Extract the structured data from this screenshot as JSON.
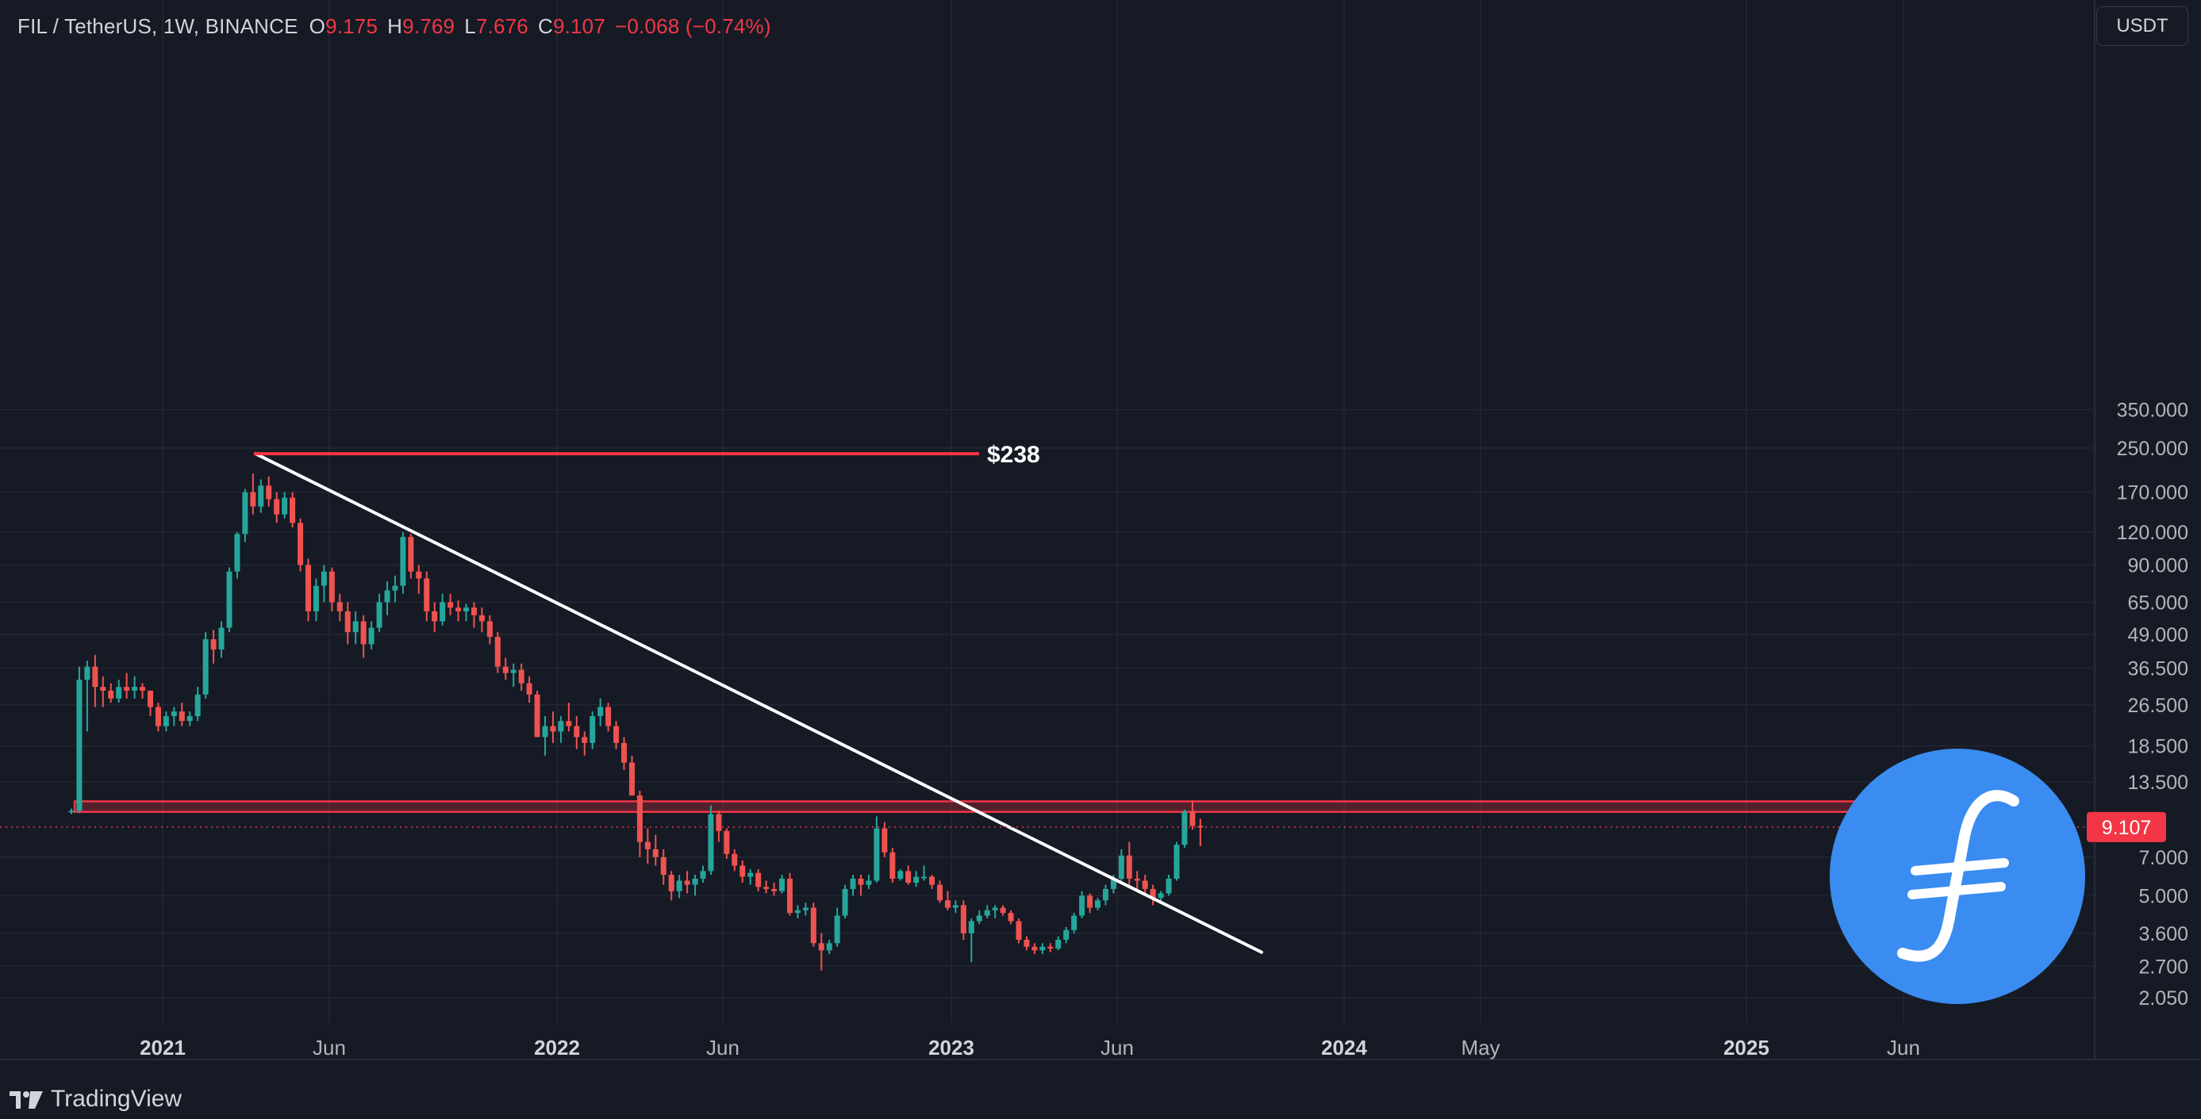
{
  "header": {
    "symbol": "FIL / TetherUS, 1W, BINANCE",
    "open_label": "O",
    "open": "9.175",
    "high_label": "H",
    "high": "9.769",
    "low_label": "L",
    "low": "7.676",
    "close_label": "C",
    "close": "9.107",
    "change": "−0.068 (−0.74%)"
  },
  "unit_button": "USDT",
  "brand": "TradingView",
  "logo": "filecoin-logo",
  "colors": {
    "background": "#161a25",
    "up": "#26a69a",
    "down": "#ef5350",
    "accent_red": "#f23645",
    "trendline": "#ffffff",
    "logo_blue": "#3a8cf0"
  },
  "chart_data": {
    "type": "candlestick",
    "scale": "log",
    "interval": "1W",
    "last_price": "9.107",
    "y_ticks": [
      "350.000",
      "250.000",
      "170.000",
      "120.000",
      "90.000",
      "65.000",
      "49.000",
      "36.500",
      "26.500",
      "18.500",
      "13.500",
      "7.000",
      "5.000",
      "3.600",
      "2.700",
      "2.050"
    ],
    "x_ticks": [
      "2021",
      "Jun",
      "2022",
      "Jun",
      "2023",
      "Jun",
      "2024",
      "May",
      "2025",
      "Jun"
    ],
    "annotations": {
      "ath_label": "$238",
      "ath_value": 238,
      "resistance_zone": [
        10.4,
        11.4
      ],
      "trendline": {
        "from": {
          "date": "2021-04-01",
          "price": 238
        },
        "to": {
          "date": "2023-10-23",
          "price": 3.2
        }
      }
    },
    "candles": [
      [
        10.4,
        10.7,
        10.2,
        10.5
      ],
      [
        10.5,
        37,
        10.3,
        33
      ],
      [
        33,
        39,
        21,
        37
      ],
      [
        37,
        41,
        26,
        31
      ],
      [
        31,
        34,
        26,
        30
      ],
      [
        30,
        32,
        27,
        28
      ],
      [
        28,
        33,
        27,
        31
      ],
      [
        31,
        35,
        28,
        30
      ],
      [
        30,
        34,
        28,
        31
      ],
      [
        31,
        32,
        28,
        30
      ],
      [
        30,
        30,
        24,
        26
      ],
      [
        26,
        27,
        21,
        22
      ],
      [
        22,
        25,
        21,
        24
      ],
      [
        24,
        26,
        22,
        25
      ],
      [
        25,
        27,
        22,
        23
      ],
      [
        23,
        25,
        22,
        24
      ],
      [
        24,
        31,
        23,
        29
      ],
      [
        29,
        50,
        28,
        47
      ],
      [
        47,
        51,
        38,
        43
      ],
      [
        43,
        55,
        40,
        52
      ],
      [
        52,
        88,
        50,
        85
      ],
      [
        85,
        120,
        80,
        118
      ],
      [
        118,
        175,
        110,
        170
      ],
      [
        170,
        200,
        140,
        150
      ],
      [
        150,
        190,
        142,
        180
      ],
      [
        180,
        195,
        150,
        160
      ],
      [
        160,
        170,
        130,
        140
      ],
      [
        140,
        170,
        135,
        162
      ],
      [
        162,
        170,
        125,
        130
      ],
      [
        130,
        135,
        85,
        90
      ],
      [
        90,
        95,
        55,
        60
      ],
      [
        60,
        80,
        55,
        75
      ],
      [
        75,
        90,
        65,
        85
      ],
      [
        85,
        88,
        60,
        65
      ],
      [
        65,
        70,
        55,
        60
      ],
      [
        60,
        65,
        45,
        50
      ],
      [
        50,
        60,
        45,
        55
      ],
      [
        55,
        58,
        40,
        45
      ],
      [
        45,
        55,
        43,
        52
      ],
      [
        52,
        70,
        50,
        65
      ],
      [
        65,
        78,
        58,
        72
      ],
      [
        72,
        82,
        65,
        75
      ],
      [
        75,
        120,
        70,
        115
      ],
      [
        115,
        118,
        80,
        85
      ],
      [
        85,
        90,
        70,
        80
      ],
      [
        80,
        85,
        55,
        60
      ],
      [
        60,
        65,
        50,
        55
      ],
      [
        55,
        70,
        53,
        65
      ],
      [
        65,
        70,
        58,
        62
      ],
      [
        62,
        66,
        55,
        60
      ],
      [
        60,
        64,
        55,
        62
      ],
      [
        62,
        65,
        52,
        58
      ],
      [
        58,
        62,
        50,
        55
      ],
      [
        55,
        58,
        45,
        48
      ],
      [
        48,
        50,
        35,
        37
      ],
      [
        37,
        40,
        33,
        35
      ],
      [
        35,
        38,
        31,
        36
      ],
      [
        36,
        38,
        30,
        32
      ],
      [
        32,
        34,
        27,
        29
      ],
      [
        29,
        30,
        20,
        20
      ],
      [
        20,
        24,
        17,
        22
      ],
      [
        22,
        25,
        19,
        21
      ],
      [
        21,
        24,
        19,
        23
      ],
      [
        23,
        27,
        21,
        22
      ],
      [
        22,
        24,
        18,
        20
      ],
      [
        20,
        21,
        17,
        19
      ],
      [
        19,
        25,
        18,
        24
      ],
      [
        24,
        28,
        22,
        26
      ],
      [
        26,
        27,
        21,
        22
      ],
      [
        22,
        23,
        18,
        19
      ],
      [
        19,
        20,
        15,
        16
      ],
      [
        16,
        17,
        12,
        12
      ],
      [
        12,
        12.5,
        7,
        8
      ],
      [
        8,
        9,
        6.6,
        7.5
      ],
      [
        7.5,
        8.5,
        6.5,
        7
      ],
      [
        7,
        7.5,
        5.5,
        6
      ],
      [
        6,
        6.2,
        4.8,
        5.2
      ],
      [
        5.2,
        6,
        4.9,
        5.7
      ],
      [
        5.7,
        6.2,
        5.1,
        5.5
      ],
      [
        5.5,
        6,
        5,
        5.8
      ],
      [
        5.8,
        6.5,
        5.6,
        6.2
      ],
      [
        6.2,
        11,
        6,
        10.2
      ],
      [
        10.2,
        10.5,
        8,
        8.8
      ],
      [
        8.8,
        9,
        6.9,
        7.2
      ],
      [
        7.2,
        7.5,
        6.2,
        6.5
      ],
      [
        6.5,
        6.8,
        5.6,
        5.9
      ],
      [
        5.9,
        6.3,
        5.5,
        6.1
      ],
      [
        6.1,
        6.3,
        5.2,
        5.4
      ],
      [
        5.4,
        5.7,
        5.1,
        5.3
      ],
      [
        5.3,
        5.6,
        5,
        5.2
      ],
      [
        5.2,
        6,
        5.1,
        5.8
      ],
      [
        5.8,
        6.1,
        4.2,
        4.3
      ],
      [
        4.3,
        4.6,
        4.1,
        4.4
      ],
      [
        4.4,
        4.7,
        4.2,
        4.5
      ],
      [
        4.5,
        4.7,
        3.2,
        3.3
      ],
      [
        3.3,
        3.6,
        2.6,
        3.1
      ],
      [
        3.1,
        3.4,
        3,
        3.3
      ],
      [
        3.3,
        4.5,
        3.2,
        4.2
      ],
      [
        4.2,
        5.5,
        4.1,
        5.3
      ],
      [
        5.3,
        6,
        5,
        5.8
      ],
      [
        5.8,
        6,
        5,
        5.5
      ],
      [
        5.5,
        6,
        5.3,
        5.7
      ],
      [
        5.7,
        10,
        5.6,
        9
      ],
      [
        9,
        9.5,
        7,
        7.3
      ],
      [
        7.3,
        7.6,
        5.6,
        5.8
      ],
      [
        5.8,
        6.3,
        5.7,
        6.2
      ],
      [
        6.2,
        6.5,
        5.5,
        5.6
      ],
      [
        5.6,
        6.2,
        5.4,
        5.9
      ],
      [
        5.9,
        6.5,
        5.7,
        5.9
      ],
      [
        5.9,
        6,
        5.3,
        5.5
      ],
      [
        5.5,
        5.7,
        4.7,
        4.8
      ],
      [
        4.8,
        5.2,
        4.4,
        4.5
      ],
      [
        4.5,
        4.8,
        4.3,
        4.6
      ],
      [
        4.6,
        4.8,
        3.4,
        3.6
      ],
      [
        3.6,
        4.1,
        2.8,
        4
      ],
      [
        4,
        4.4,
        3.9,
        4.2
      ],
      [
        4.2,
        4.6,
        4.1,
        4.4
      ],
      [
        4.4,
        4.6,
        4.1,
        4.5
      ],
      [
        4.5,
        4.6,
        4.2,
        4.3
      ],
      [
        4.3,
        4.4,
        3.9,
        4
      ],
      [
        4,
        4.1,
        3.3,
        3.4
      ],
      [
        3.4,
        3.5,
        3.1,
        3.2
      ],
      [
        3.2,
        3.3,
        3,
        3.1
      ],
      [
        3.1,
        3.3,
        3,
        3.2
      ],
      [
        3.2,
        3.3,
        3.05,
        3.15
      ],
      [
        3.15,
        3.5,
        3.1,
        3.4
      ],
      [
        3.4,
        3.8,
        3.3,
        3.7
      ],
      [
        3.7,
        4.3,
        3.6,
        4.2
      ],
      [
        4.2,
        5.2,
        4.1,
        5
      ],
      [
        5,
        5.1,
        4.3,
        4.5
      ],
      [
        4.5,
        4.9,
        4.4,
        4.8
      ],
      [
        4.8,
        5.5,
        4.6,
        5.3
      ],
      [
        5.3,
        6,
        5.1,
        5.8
      ],
      [
        5.8,
        7.5,
        5.7,
        7.1
      ],
      [
        7.1,
        8,
        5.5,
        5.8
      ],
      [
        5.8,
        6.2,
        5.3,
        5.7
      ],
      [
        5.7,
        6,
        5.1,
        5.3
      ],
      [
        5.3,
        5.5,
        4.6,
        4.9
      ],
      [
        4.9,
        5.2,
        4.7,
        5.1
      ],
      [
        5.1,
        6,
        5,
        5.8
      ],
      [
        5.8,
        8,
        5.7,
        7.8
      ],
      [
        7.8,
        10.6,
        7.6,
        10.4
      ],
      [
        10.4,
        11.5,
        8.9,
        9.2
      ],
      [
        9.2,
        9.8,
        7.7,
        9.1
      ]
    ]
  }
}
